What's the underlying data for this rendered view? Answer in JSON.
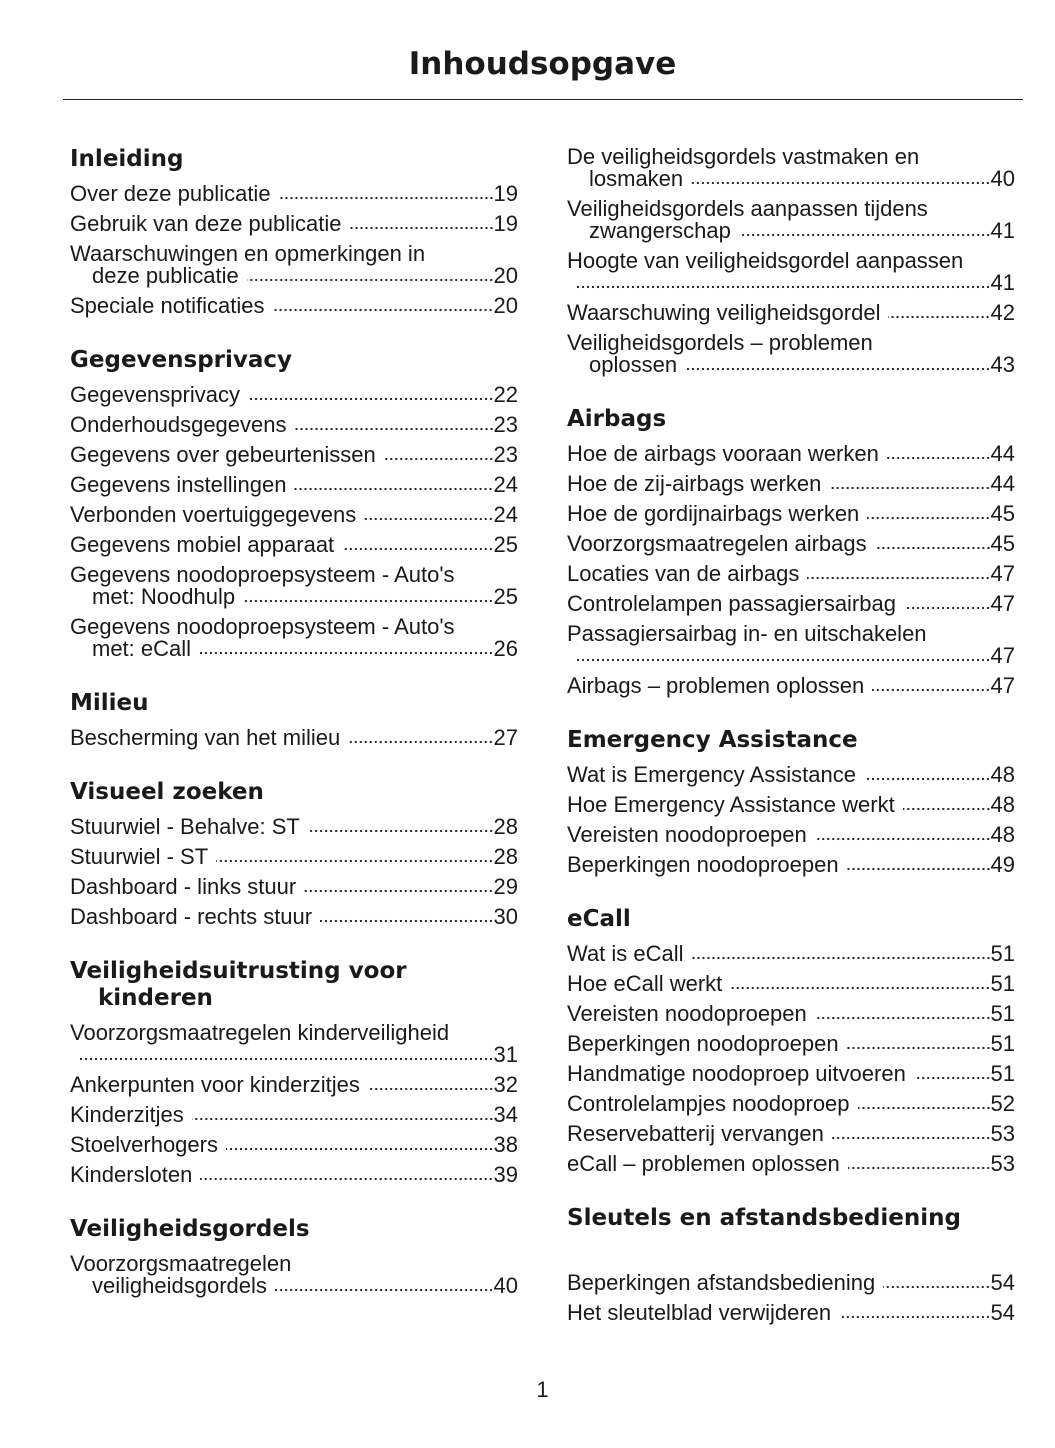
{
  "header": {
    "title": "Inhoudsopgave"
  },
  "columns": [
    {
      "sections": [
        {
          "heading": "Inleiding",
          "entries": [
            {
              "lines": [
                "Over deze publicatie"
              ],
              "page": "19"
            },
            {
              "lines": [
                "Gebruik van deze publicatie"
              ],
              "page": "19"
            },
            {
              "lines": [
                "Waarschuwingen en opmerkingen in",
                "deze publicatie"
              ],
              "page": "20"
            },
            {
              "lines": [
                "Speciale notificaties"
              ],
              "page": "20"
            }
          ]
        },
        {
          "heading": "Gegevensprivacy",
          "entries": [
            {
              "lines": [
                "Gegevensprivacy"
              ],
              "page": "22"
            },
            {
              "lines": [
                "Onderhoudsgegevens"
              ],
              "page": "23"
            },
            {
              "lines": [
                "Gegevens over gebeurtenissen"
              ],
              "page": "23"
            },
            {
              "lines": [
                "Gegevens instellingen"
              ],
              "page": "24"
            },
            {
              "lines": [
                "Verbonden voertuiggegevens"
              ],
              "page": "24"
            },
            {
              "lines": [
                "Gegevens mobiel apparaat"
              ],
              "page": "25"
            },
            {
              "lines": [
                "Gegevens noodoproepsysteem - Auto's",
                "met: Noodhulp"
              ],
              "page": "25"
            },
            {
              "lines": [
                "Gegevens noodoproepsysteem - Auto's",
                "met: eCall"
              ],
              "page": "26"
            }
          ]
        },
        {
          "heading": "Milieu",
          "entries": [
            {
              "lines": [
                "Bescherming van het milieu"
              ],
              "page": "27"
            }
          ]
        },
        {
          "heading": "Visueel zoeken",
          "entries": [
            {
              "lines": [
                "Stuurwiel - Behalve: ST"
              ],
              "page": "28"
            },
            {
              "lines": [
                "Stuurwiel - ST"
              ],
              "page": "28"
            },
            {
              "lines": [
                "Dashboard - links stuur"
              ],
              "page": "29"
            },
            {
              "lines": [
                "Dashboard - rechts stuur"
              ],
              "page": "30"
            }
          ]
        },
        {
          "heading": "Veiligheidsuitrusting voor kinderen",
          "entries": [
            {
              "lines": [
                "Voorzorgsmaatregelen kinderveiligheid"
              ],
              "page": "31"
            },
            {
              "lines": [
                "Ankerpunten voor kinderzitjes"
              ],
              "page": "32"
            },
            {
              "lines": [
                "Kinderzitjes"
              ],
              "page": "34"
            },
            {
              "lines": [
                "Stoelverhogers"
              ],
              "page": "38"
            },
            {
              "lines": [
                "Kindersloten"
              ],
              "page": "39"
            }
          ]
        },
        {
          "heading": "Veiligheidsgordels",
          "entries": [
            {
              "lines": [
                "Voorzorgsmaatregelen",
                "veiligheidsgordels"
              ],
              "page": "40"
            }
          ]
        }
      ]
    },
    {
      "sections": [
        {
          "entries": [
            {
              "lines": [
                "De veiligheidsgordels vastmaken en",
                "losmaken"
              ],
              "page": "40"
            },
            {
              "lines": [
                "Veiligheidsgordels aanpassen tijdens",
                "zwangerschap"
              ],
              "page": "41"
            },
            {
              "lines": [
                "Hoogte van veiligheidsgordel aanpassen"
              ],
              "page": "41"
            },
            {
              "lines": [
                "Waarschuwing veiligheidsgordel"
              ],
              "page": "42"
            },
            {
              "lines": [
                "Veiligheidsgordels – problemen",
                "oplossen"
              ],
              "page": "43"
            }
          ]
        },
        {
          "heading": "Airbags",
          "entries": [
            {
              "lines": [
                "Hoe de airbags vooraan werken"
              ],
              "page": "44"
            },
            {
              "lines": [
                "Hoe de zij-airbags werken"
              ],
              "page": "44"
            },
            {
              "lines": [
                "Hoe de gordijnairbags werken"
              ],
              "page": "45"
            },
            {
              "lines": [
                "Voorzorgsmaatregelen airbags"
              ],
              "page": "45"
            },
            {
              "lines": [
                "Locaties van de airbags"
              ],
              "page": "47"
            },
            {
              "lines": [
                "Controlelampen passagiersairbag"
              ],
              "page": "47"
            },
            {
              "lines": [
                "Passagiersairbag in- en uitschakelen"
              ],
              "page": "47"
            },
            {
              "lines": [
                "Airbags – problemen oplossen"
              ],
              "page": "47"
            }
          ]
        },
        {
          "heading": "Emergency Assistance",
          "entries": [
            {
              "lines": [
                "Wat is Emergency Assistance"
              ],
              "page": "48"
            },
            {
              "lines": [
                "Hoe Emergency Assistance werkt"
              ],
              "page": "48"
            },
            {
              "lines": [
                "Vereisten noodoproepen"
              ],
              "page": "48"
            },
            {
              "lines": [
                "Beperkingen noodoproepen"
              ],
              "page": "49"
            }
          ]
        },
        {
          "heading": "eCall",
          "entries": [
            {
              "lines": [
                "Wat is eCall"
              ],
              "page": "51"
            },
            {
              "lines": [
                "Hoe eCall werkt"
              ],
              "page": "51"
            },
            {
              "lines": [
                "Vereisten noodoproepen"
              ],
              "page": "51"
            },
            {
              "lines": [
                "Beperkingen noodoproepen"
              ],
              "page": "51"
            },
            {
              "lines": [
                "Handmatige noodoproep uitvoeren"
              ],
              "page": "51"
            },
            {
              "lines": [
                "Controlelampjes noodoproep"
              ],
              "page": "52"
            },
            {
              "lines": [
                "Reservebatterij vervangen"
              ],
              "page": "53"
            },
            {
              "lines": [
                "eCall – problemen oplossen"
              ],
              "page": "53"
            }
          ]
        },
        {
          "heading": "Sleutels en afstandsbediening",
          "entries": [
            {
              "lines": [
                "Beperkingen afstandsbediening"
              ],
              "page": "54"
            },
            {
              "lines": [
                "Het sleutelblad verwijderen"
              ],
              "page": "54"
            }
          ]
        }
      ]
    }
  ],
  "footer": {
    "page_number": "1"
  }
}
